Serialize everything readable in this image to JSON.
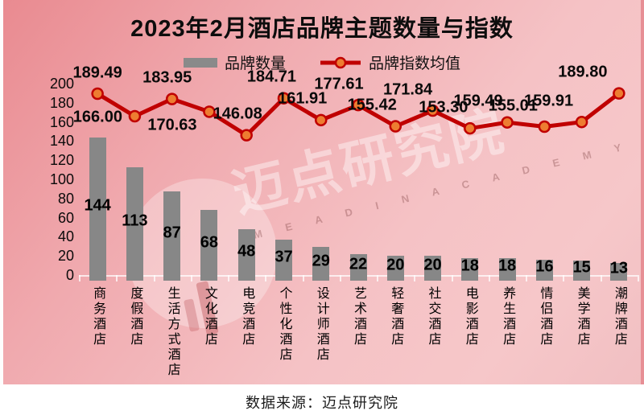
{
  "title": "2023年2月酒店品牌主题数量与指数",
  "legend": {
    "items": [
      {
        "label": "品牌数量",
        "type": "bar",
        "color": "#8A8A8A"
      },
      {
        "label": "品牌指数均值",
        "type": "line",
        "color": "#C00000",
        "marker": "#ED7D31"
      }
    ]
  },
  "chart_data": {
    "type": "bar+line",
    "title": "2023年2月酒店品牌主题数量与指数",
    "categories": [
      "商务酒店",
      "度假酒店",
      "生活方式酒店",
      "文化酒店",
      "电竞酒店",
      "个性化酒店",
      "设计师酒店",
      "艺术酒店",
      "轻奢酒店",
      "社交酒店",
      "电影酒店",
      "养生酒店",
      "情侣酒店",
      "美学酒店",
      "潮牌酒店"
    ],
    "series": [
      {
        "name": "品牌数量",
        "type": "bar",
        "color": "#878787",
        "values": [
          144,
          113,
          87,
          68,
          48,
          37,
          29,
          22,
          20,
          20,
          18,
          18,
          16,
          15,
          13
        ]
      },
      {
        "name": "品牌指数均值",
        "type": "line",
        "color": "#C00000",
        "marker_fill": "#ED7D31",
        "values": [
          189.49,
          166.0,
          183.95,
          170.63,
          146.08,
          184.71,
          161.91,
          177.61,
          155.42,
          171.84,
          153.3,
          159.49,
          155.01,
          159.91,
          189.8
        ],
        "value_labels": [
          "189.49",
          "166.00",
          "183.95",
          "170.63",
          "146.08",
          "184.71",
          "161.91",
          "177.61",
          "155.42",
          "171.84",
          "153.30",
          "159.49",
          "155.01",
          "159.91",
          "189.80"
        ]
      }
    ],
    "ylim": [
      0,
      200
    ],
    "ytick_step": 20,
    "grid": false,
    "legend_position": "top-center"
  },
  "watermark": {
    "brand": "迈点研究院",
    "latin": "M E A D I N  A C A D E M Y"
  },
  "footer": {
    "source": "数据来源：迈点研究院"
  },
  "colors": {
    "background_top_left": "#E98A90",
    "background_bottom_right": "#F6C7C9",
    "bar": "#878787",
    "line": "#C00000",
    "marker": "#ED7D31",
    "axis": "#FFFFFF",
    "text": "#000000",
    "footer_bg": "#FFFFFF"
  }
}
